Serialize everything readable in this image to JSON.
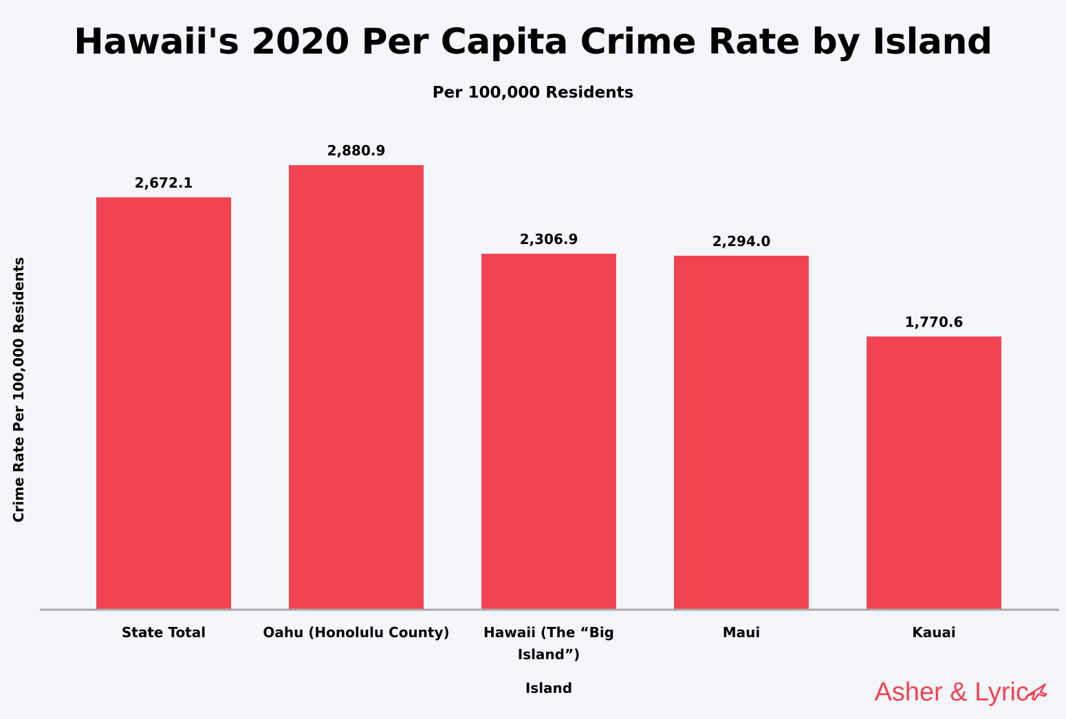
{
  "chart_data": {
    "type": "bar",
    "title": "Hawaii's 2020 Per Capita Crime Rate by Island",
    "subtitle": "Per 100,000 Residents",
    "xlabel": "Island",
    "ylabel": "Crime Rate Per 100,000 Residents",
    "categories": [
      [
        "State Total"
      ],
      [
        "Oahu (Honolulu County)"
      ],
      [
        "Hawaii (The “Big",
        "Island”)"
      ],
      [
        "Maui"
      ],
      [
        "Kauai"
      ]
    ],
    "values": [
      2672.1,
      2880.9,
      2306.9,
      2294.0,
      1770.6
    ],
    "value_labels": [
      "2,672.1",
      "2,880.9",
      "2,306.9",
      "2,294.0",
      "1,770.6"
    ],
    "ylim": [
      0,
      3000
    ],
    "grid": false,
    "legend": "none",
    "bar_color": "#f04452",
    "axis_color": "#a9a9a9"
  },
  "brand": {
    "text": "Asher & Lyric",
    "icon": "airplane-icon",
    "color": "#f04452"
  }
}
